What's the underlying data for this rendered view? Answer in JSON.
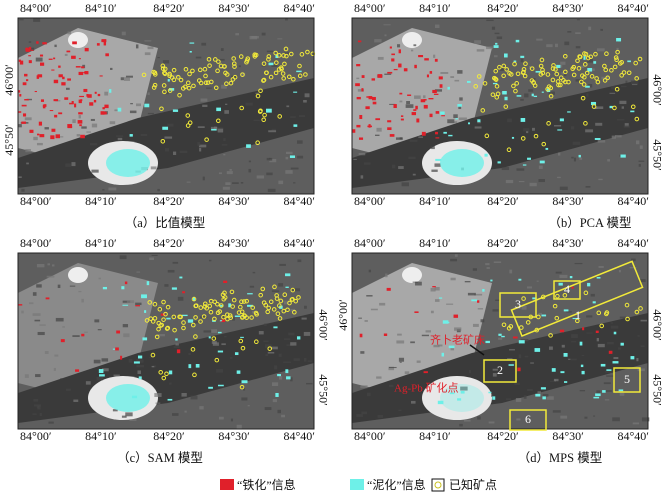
{
  "panels": [
    {
      "caption": "（a）比值模型",
      "top_labels": [
        "84°00′",
        "84°10′",
        "84°20′",
        "84°30′",
        "84°40′"
      ],
      "bottom_labels": [
        "84°00′",
        "84°10′",
        "84°20′",
        "84°30′",
        "84°40′"
      ],
      "left_labels": [
        "46°00′",
        "45°50′"
      ]
    },
    {
      "caption": "（b）PCA 模型",
      "top_labels": [
        "84°00′",
        "84°10′",
        "84°20′",
        "84°30′",
        "84°40′"
      ],
      "bottom_labels": [
        "84°00′",
        "84°10′",
        "84°20′",
        "84°30′",
        "84°40′"
      ],
      "right_labels": [
        "46°00′",
        "45°50′"
      ]
    },
    {
      "caption": "（c）SAM 模型",
      "top_labels": [
        "84°00′",
        "84°10′",
        "84°20′",
        "84°30′",
        "84°40′"
      ],
      "bottom_labels": [
        "84°00′",
        "84°10′",
        "84°20′",
        "84°30′",
        "84°40′"
      ],
      "right_labels": [
        "46°00′",
        "45°50′"
      ]
    },
    {
      "caption": "（d）MPS 模型",
      "top_labels": [
        "84°00′",
        "84°10′",
        "84°20′",
        "84°30′",
        "84°40′"
      ],
      "bottom_labels": [
        "84°00′",
        "84°10′",
        "84°20′",
        "84°30′",
        "84°40′"
      ],
      "left_labels": [
        "46°00′"
      ],
      "right_labels": [
        "46°00′",
        "45°50′"
      ],
      "boxes": [
        "1",
        "2",
        "3",
        "4",
        "5",
        "6"
      ],
      "deposits": [
        "齐卜老矿床",
        "Ag-Pb 矿化点"
      ]
    }
  ],
  "legend": [
    "“铁化”信息",
    "“泥化”信息",
    "已知矿点"
  ]
}
